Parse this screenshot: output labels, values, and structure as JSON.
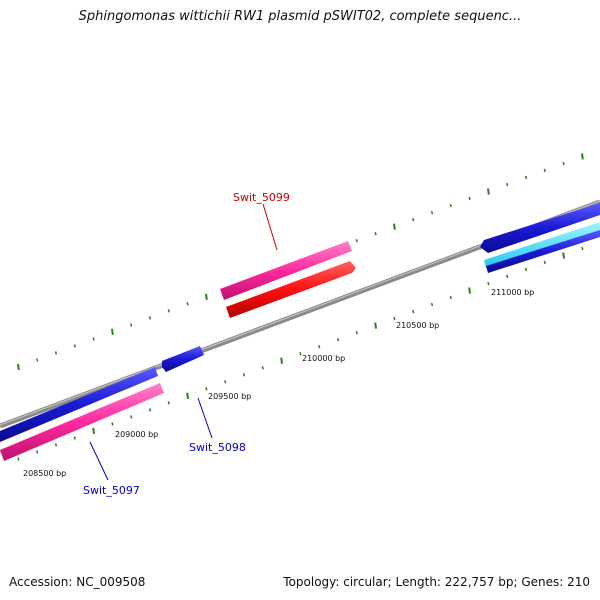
{
  "title": "Sphingomonas wittichii RW1 plasmid pSWIT02, complete sequenc...",
  "footer": {
    "accession": "Accession: NC_009508",
    "stats": "Topology: circular; Length: 222,757 bp; Genes: 210"
  },
  "scale_labels": {
    "bp_208500": "208500 bp",
    "bp_209000": "209000 bp",
    "bp_209500": "209500 bp",
    "bp_210000": "210000 bp",
    "bp_210500": "210500 bp",
    "bp_211000": "211000 bp"
  },
  "gene_labels": {
    "swit_5099": "Swit_5099",
    "swit_5098": "Swit_5098",
    "swit_5097": "Swit_5097"
  },
  "colors": {
    "backbone": "#8a8a8a",
    "ticks": "#2e7d1e",
    "gene_blue": "#1a1ad6",
    "gene_pink": "#ff2aa0",
    "gene_red": "#ff1010",
    "gene_cyan": "#33e0ff",
    "label_red": "#cc0000",
    "label_blue": "#0000cc"
  }
}
